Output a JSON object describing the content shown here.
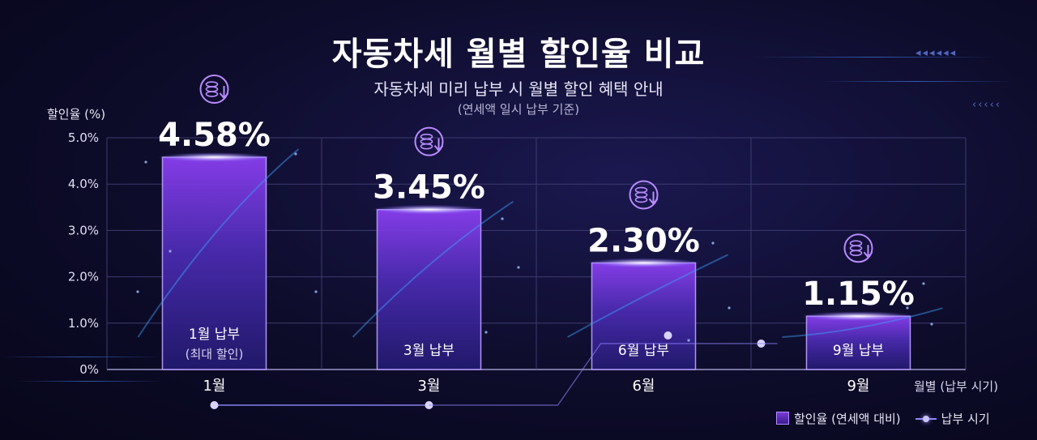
{
  "title": "자동차세 월별 할인율 비교",
  "subtitle": "자동차세 미리 납부 시 월별 할인 혜택 안내",
  "note": "(연세액 일시 납부 기준)",
  "chart_data": {
    "type": "bar",
    "categories": [
      "1월",
      "3월",
      "6월",
      "9월"
    ],
    "values": [
      4.58,
      3.45,
      2.3,
      1.15
    ],
    "value_labels": [
      "4.58%",
      "3.45%",
      "2.30%",
      "1.15%"
    ],
    "bar_labels": [
      {
        "main": "1월 납부",
        "sub": "(최대 할인)"
      },
      {
        "main": "3월 납부",
        "sub": ""
      },
      {
        "main": "6월 납부",
        "sub": ""
      },
      {
        "main": "9월 납부",
        "sub": ""
      }
    ],
    "ylabel": "할인율 (%)",
    "xlabel": "월별 (납부 시기)",
    "ylim": [
      0,
      5.0
    ],
    "yticks": [
      "0%",
      "1.0%",
      "2.0%",
      "3.0%",
      "4.0%",
      "5.0%"
    ],
    "grid": true,
    "legend": {
      "position": "bottom-right",
      "entries": [
        "할인율 (연세액 대비)",
        "납부 시기"
      ]
    },
    "colors": {
      "bar_top": "#8a3ff0",
      "bar_bottom": "#221a6e",
      "accent": "#b88bff",
      "timeline": "#8f87ff"
    },
    "icon": "coin-stack-down-icon"
  }
}
